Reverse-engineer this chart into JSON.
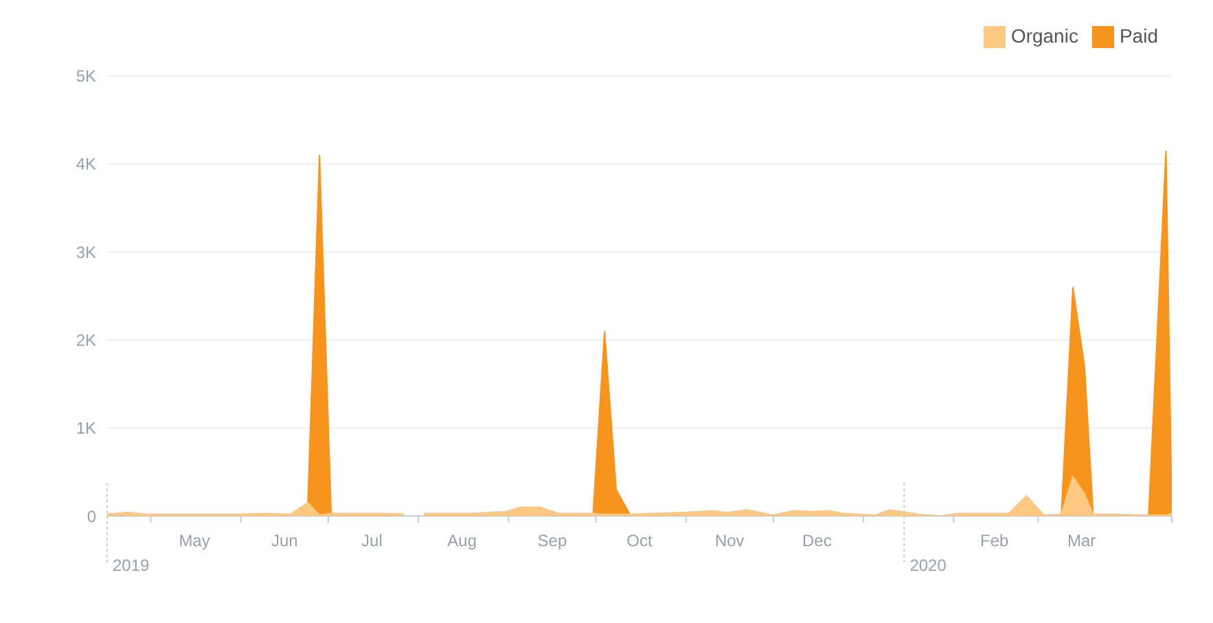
{
  "chart_data": {
    "type": "area",
    "x": [
      "2019-04-16",
      "2019-04-23",
      "2019-04-30",
      "2019-05-15",
      "2019-05-31",
      "2019-06-10",
      "2019-06-18",
      "2019-06-24",
      "2019-06-28",
      "2019-07-02",
      "2019-07-10",
      "2019-07-20",
      "2019-07-27",
      "2019-07-30",
      "2019-08-03",
      "2019-08-20",
      "2019-08-31",
      "2019-09-05",
      "2019-09-12",
      "2019-09-18",
      "2019-09-30",
      "2019-10-04",
      "2019-10-08",
      "2019-10-13",
      "2019-10-20",
      "2019-11-01",
      "2019-11-10",
      "2019-11-15",
      "2019-11-22",
      "2019-12-01",
      "2019-12-08",
      "2019-12-15",
      "2019-12-20",
      "2019-12-25",
      "2020-01-05",
      "2020-01-10",
      "2020-01-20",
      "2020-01-27",
      "2020-02-03",
      "2020-02-12",
      "2020-02-20",
      "2020-02-26",
      "2020-03-03",
      "2020-03-09",
      "2020-03-13",
      "2020-03-17",
      "2020-03-20",
      "2020-03-28",
      "2020-04-06",
      "2020-04-08",
      "2020-04-14",
      "2020-04-16"
    ],
    "series": [
      {
        "name": "Paid",
        "color": "#f7941d",
        "values": [
          0,
          0,
          0,
          0,
          0,
          0,
          0,
          150,
          4100,
          30,
          0,
          0,
          0,
          null,
          0,
          0,
          0,
          0,
          0,
          0,
          0,
          2100,
          300,
          0,
          0,
          0,
          0,
          0,
          0,
          0,
          0,
          0,
          0,
          0,
          0,
          0,
          0,
          0,
          0,
          0,
          0,
          0,
          0,
          0,
          2600,
          1700,
          0,
          0,
          0,
          0,
          4150,
          100
        ]
      },
      {
        "name": "Organic",
        "color": "#fcc882",
        "values": [
          20,
          40,
          20,
          20,
          20,
          30,
          20,
          150,
          10,
          30,
          30,
          30,
          20,
          null,
          30,
          30,
          50,
          100,
          100,
          30,
          30,
          20,
          20,
          20,
          30,
          40,
          60,
          40,
          70,
          10,
          60,
          50,
          60,
          30,
          10,
          70,
          20,
          0,
          30,
          30,
          30,
          230,
          10,
          20,
          450,
          250,
          20,
          20,
          10,
          10,
          10,
          30
        ]
      }
    ],
    "xlim": [
      "2019-04-16",
      "2020-04-16"
    ],
    "xticks": [
      {
        "value": "2019-05-01",
        "label": null
      },
      {
        "value": "2019-05-16",
        "label": "May"
      },
      {
        "value": "2019-06-01",
        "label": null
      },
      {
        "value": "2019-06-16",
        "label": "Jun"
      },
      {
        "value": "2019-07-01",
        "label": null
      },
      {
        "value": "2019-07-16",
        "label": "Jul"
      },
      {
        "value": "2019-08-01",
        "label": null
      },
      {
        "value": "2019-08-16",
        "label": "Aug"
      },
      {
        "value": "2019-09-01",
        "label": null
      },
      {
        "value": "2019-09-16",
        "label": "Sep"
      },
      {
        "value": "2019-10-01",
        "label": null
      },
      {
        "value": "2019-10-16",
        "label": "Oct"
      },
      {
        "value": "2019-11-01",
        "label": null
      },
      {
        "value": "2019-11-16",
        "label": "Nov"
      },
      {
        "value": "2019-12-01",
        "label": null
      },
      {
        "value": "2019-12-16",
        "label": "Dec"
      },
      {
        "value": "2020-01-01",
        "label": null
      },
      {
        "value": "2020-02-01",
        "label": null
      },
      {
        "value": "2020-02-15",
        "label": "Feb"
      },
      {
        "value": "2020-03-01",
        "label": null
      },
      {
        "value": "2020-03-16",
        "label": "Mar"
      },
      {
        "value": "2020-04-16",
        "label": null
      }
    ],
    "ylim": [
      0,
      5000
    ],
    "yticks": [
      {
        "value": 0,
        "label": "0"
      },
      {
        "value": 1000,
        "label": "1K"
      },
      {
        "value": 2000,
        "label": "2K"
      },
      {
        "value": 3000,
        "label": "3K"
      },
      {
        "value": 4000,
        "label": "4K"
      },
      {
        "value": 5000,
        "label": "5K"
      }
    ],
    "ref_lines": [
      {
        "axis": "x",
        "value": "2019-04-16",
        "label": "2019",
        "line_style": "dotted",
        "color": "#c8ccd4"
      },
      {
        "axis": "x",
        "value": "2020-01-15",
        "label": "2020",
        "line_style": "dotted",
        "color": "#c8ccd4"
      }
    ],
    "grid": "y",
    "legend": "top right"
  }
}
